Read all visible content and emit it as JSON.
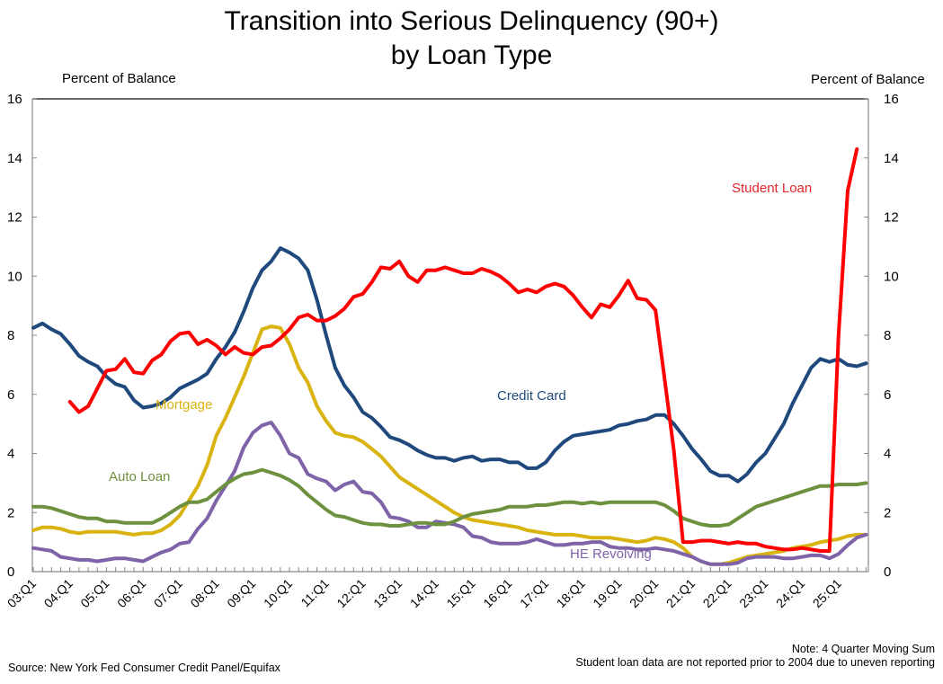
{
  "chart_data": {
    "type": "line",
    "title": "Transition into Serious Delinquency (90+)",
    "subtitle": "by Loan Type",
    "ylabel_left": "Percent of Balance",
    "ylabel_right": "Percent of Balance",
    "ylim": [
      0,
      16
    ],
    "yticks": [
      0,
      2,
      4,
      6,
      8,
      10,
      12,
      14,
      16
    ],
    "xtick_labels": [
      "03:Q1",
      "04:Q1",
      "05:Q1",
      "06:Q1",
      "07:Q1",
      "08:Q1",
      "09:Q1",
      "10:Q1",
      "11:Q1",
      "12:Q1",
      "13:Q1",
      "14:Q1",
      "15:Q1",
      "16:Q1",
      "17:Q1",
      "18:Q1",
      "19:Q1",
      "20:Q1",
      "21:Q1",
      "22:Q1",
      "23:Q1",
      "24:Q1",
      "25:Q1"
    ],
    "x_start": "03:Q1",
    "x_end": "25:Q4",
    "grid": false,
    "series": [
      {
        "name": "Mortgage",
        "color": "#D9B310",
        "values": [
          1.4,
          1.5,
          1.5,
          1.45,
          1.35,
          1.3,
          1.35,
          1.35,
          1.35,
          1.35,
          1.3,
          1.25,
          1.3,
          1.3,
          1.4,
          1.6,
          1.9,
          2.4,
          2.9,
          3.6,
          4.6,
          5.2,
          5.9,
          6.6,
          7.4,
          8.2,
          8.3,
          8.25,
          7.7,
          6.9,
          6.4,
          5.6,
          5.1,
          4.7,
          4.6,
          4.55,
          4.4,
          4.15,
          3.9,
          3.55,
          3.2,
          3.0,
          2.8,
          2.6,
          2.4,
          2.2,
          2.0,
          1.85,
          1.75,
          1.7,
          1.65,
          1.6,
          1.55,
          1.5,
          1.4,
          1.35,
          1.3,
          1.25,
          1.25,
          1.25,
          1.2,
          1.15,
          1.15,
          1.15,
          1.1,
          1.05,
          1.0,
          1.05,
          1.15,
          1.1,
          1.0,
          0.8,
          0.5,
          0.35,
          0.25,
          0.25,
          0.3,
          0.4,
          0.5,
          0.55,
          0.6,
          0.65,
          0.7,
          0.8,
          0.85,
          0.9,
          1.0,
          1.05,
          1.1,
          1.2,
          1.25,
          1.25
        ]
      },
      {
        "name": "HE Revolving",
        "color": "#7F63A8",
        "values": [
          0.8,
          0.75,
          0.7,
          0.5,
          0.45,
          0.4,
          0.4,
          0.35,
          0.4,
          0.45,
          0.45,
          0.4,
          0.35,
          0.5,
          0.65,
          0.75,
          0.95,
          1.0,
          1.45,
          1.8,
          2.4,
          2.9,
          3.4,
          4.2,
          4.7,
          4.95,
          5.05,
          4.6,
          4.0,
          3.85,
          3.3,
          3.15,
          3.05,
          2.75,
          2.95,
          3.05,
          2.7,
          2.65,
          2.35,
          1.85,
          1.8,
          1.7,
          1.5,
          1.5,
          1.7,
          1.65,
          1.6,
          1.5,
          1.2,
          1.15,
          1.0,
          0.95,
          0.95,
          0.95,
          1.0,
          1.1,
          1.0,
          0.9,
          0.9,
          0.95,
          0.95,
          1.0,
          1.0,
          0.85,
          0.8,
          0.8,
          0.75,
          0.75,
          0.8,
          0.75,
          0.7,
          0.6,
          0.5,
          0.35,
          0.25,
          0.25,
          0.25,
          0.3,
          0.45,
          0.5,
          0.5,
          0.5,
          0.45,
          0.45,
          0.5,
          0.55,
          0.55,
          0.45,
          0.6,
          0.9,
          1.15,
          1.25
        ]
      },
      {
        "name": "Auto Loan",
        "color": "#6E9140",
        "values": [
          2.2,
          2.2,
          2.15,
          2.05,
          1.95,
          1.85,
          1.8,
          1.8,
          1.7,
          1.7,
          1.65,
          1.65,
          1.65,
          1.65,
          1.8,
          2.0,
          2.2,
          2.35,
          2.35,
          2.45,
          2.7,
          2.95,
          3.15,
          3.3,
          3.35,
          3.45,
          3.35,
          3.25,
          3.1,
          2.9,
          2.6,
          2.35,
          2.1,
          1.9,
          1.85,
          1.75,
          1.65,
          1.6,
          1.6,
          1.55,
          1.55,
          1.6,
          1.65,
          1.65,
          1.6,
          1.6,
          1.7,
          1.85,
          1.95,
          2.0,
          2.05,
          2.1,
          2.2,
          2.2,
          2.2,
          2.25,
          2.25,
          2.3,
          2.35,
          2.35,
          2.3,
          2.35,
          2.3,
          2.35,
          2.35,
          2.35,
          2.35,
          2.35,
          2.35,
          2.25,
          2.05,
          1.8,
          1.7,
          1.6,
          1.55,
          1.55,
          1.6,
          1.8,
          2.0,
          2.2,
          2.3,
          2.4,
          2.5,
          2.6,
          2.7,
          2.8,
          2.9,
          2.9,
          2.95,
          2.95,
          2.95,
          3.0
        ]
      },
      {
        "name": "Credit Card",
        "color": "#1F497D",
        "values": [
          8.25,
          8.4,
          8.2,
          8.05,
          7.7,
          7.3,
          7.1,
          6.95,
          6.6,
          6.35,
          6.25,
          5.8,
          5.55,
          5.6,
          5.7,
          5.9,
          6.2,
          6.35,
          6.5,
          6.7,
          7.2,
          7.6,
          8.1,
          8.8,
          9.6,
          10.2,
          10.5,
          10.95,
          10.8,
          10.6,
          10.2,
          9.2,
          8.0,
          6.9,
          6.3,
          5.9,
          5.4,
          5.2,
          4.9,
          4.55,
          4.45,
          4.3,
          4.1,
          3.95,
          3.85,
          3.85,
          3.75,
          3.85,
          3.9,
          3.75,
          3.8,
          3.8,
          3.7,
          3.7,
          3.5,
          3.5,
          3.7,
          4.1,
          4.4,
          4.6,
          4.65,
          4.7,
          4.75,
          4.8,
          4.95,
          5.0,
          5.1,
          5.15,
          5.3,
          5.3,
          5.0,
          4.6,
          4.15,
          3.8,
          3.4,
          3.25,
          3.25,
          3.05,
          3.3,
          3.7,
          4.0,
          4.5,
          5.0,
          5.7,
          6.3,
          6.9,
          7.2,
          7.1,
          7.2,
          7.0,
          6.95,
          7.05
        ]
      },
      {
        "name": "Student Loan",
        "color": "#FF0000",
        "values": [
          null,
          null,
          null,
          null,
          5.75,
          5.4,
          5.6,
          6.2,
          6.8,
          6.85,
          7.2,
          6.75,
          6.7,
          7.15,
          7.35,
          7.8,
          8.05,
          8.1,
          7.7,
          7.85,
          7.65,
          7.35,
          7.6,
          7.4,
          7.35,
          7.6,
          7.65,
          7.9,
          8.2,
          8.6,
          8.7,
          8.5,
          8.5,
          8.65,
          8.9,
          9.3,
          9.4,
          9.8,
          10.3,
          10.25,
          10.5,
          10.0,
          9.8,
          10.2,
          10.2,
          10.3,
          10.2,
          10.1,
          10.1,
          10.25,
          10.15,
          10.0,
          9.75,
          9.45,
          9.55,
          9.45,
          9.65,
          9.75,
          9.65,
          9.35,
          8.95,
          8.6,
          9.05,
          8.95,
          9.35,
          9.85,
          9.25,
          9.2,
          8.85,
          6.5,
          4.1,
          1.0,
          1.0,
          1.05,
          1.05,
          1.0,
          0.95,
          1.0,
          0.95,
          0.95,
          0.85,
          0.8,
          0.75,
          0.75,
          0.8,
          0.75,
          0.7,
          0.7,
          8.0,
          12.9,
          14.3,
          null
        ]
      }
    ]
  },
  "series_labels": {
    "mortgage": "Mortgage",
    "he_revolving": "HE Revolving",
    "auto_loan": "Auto Loan",
    "credit_card": "Credit Card",
    "student_loan": "Student Loan"
  },
  "footer": {
    "source": "Source: New York Fed Consumer Credit Panel/Equifax",
    "note1": "Note: 4 Quarter Moving Sum",
    "note2": "Student loan data are not reported prior to 2004 due to uneven reporting"
  }
}
